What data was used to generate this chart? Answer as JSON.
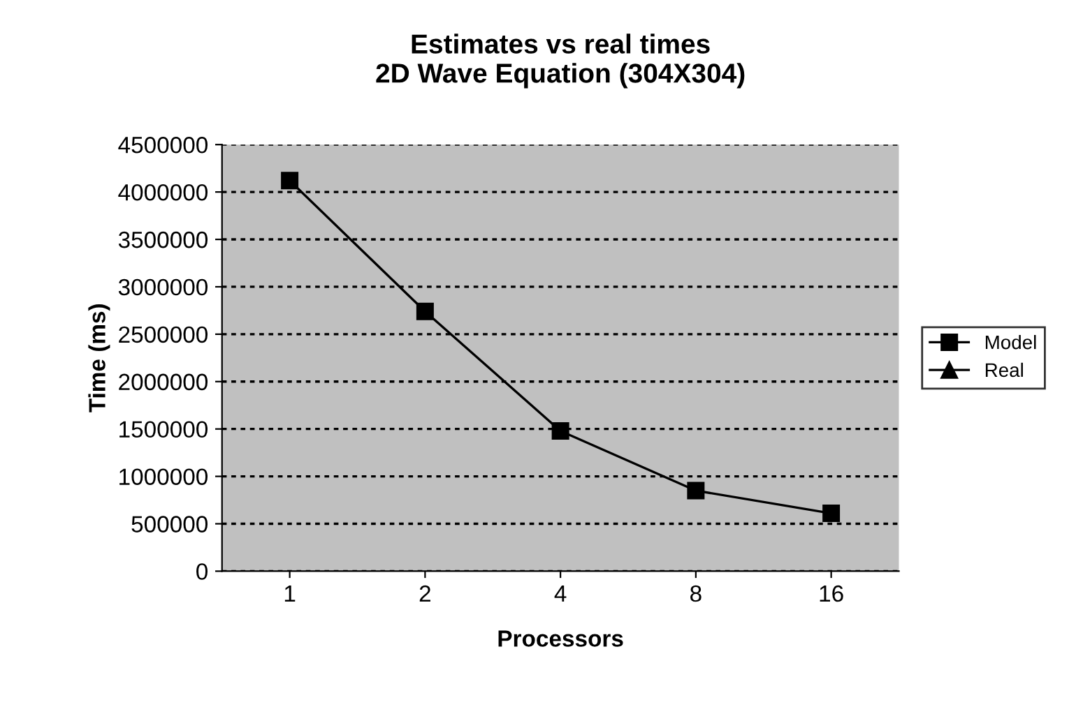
{
  "chart_data": {
    "type": "line",
    "title": "Estimates vs real times\n2D Wave Equation (304X304)",
    "xlabel": "Processors",
    "ylabel": "Time (ms)",
    "categories": [
      "1",
      "2",
      "4",
      "8",
      "16"
    ],
    "series": [
      {
        "name": "Model",
        "color": "#000000",
        "marker": "square",
        "values": [
          4120000,
          2740000,
          1480000,
          850000,
          610000
        ]
      },
      {
        "name": "Real",
        "color": "#000000",
        "marker": "triangle",
        "values": [
          null,
          null,
          null,
          null,
          null
        ]
      }
    ],
    "ylim": [
      0,
      4500000
    ],
    "yticks": [
      0,
      500000,
      1000000,
      1500000,
      2000000,
      2500000,
      3000000,
      3500000,
      4000000,
      4500000
    ],
    "grid": "y",
    "legend": "right",
    "line_style": "solid"
  }
}
